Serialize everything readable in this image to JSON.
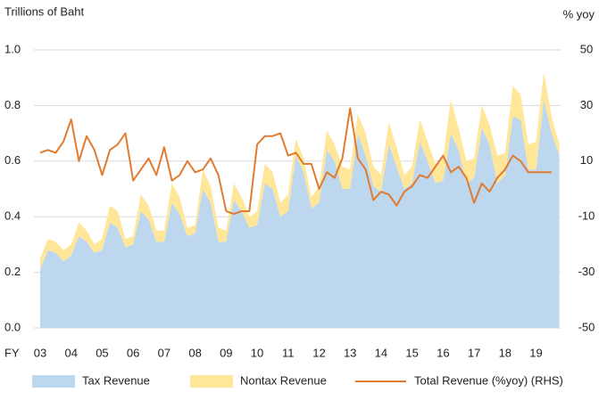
{
  "chart_data": {
    "type": "combo",
    "ylabel": "Trillions of Baht",
    "y2label": "% yoy",
    "xlabel": "FY",
    "categories": [
      "03",
      null,
      null,
      null,
      "04",
      null,
      null,
      null,
      "05",
      null,
      null,
      null,
      "06",
      null,
      null,
      null,
      "07",
      null,
      null,
      null,
      "08",
      null,
      null,
      null,
      "09",
      null,
      null,
      null,
      "10",
      null,
      null,
      null,
      "11",
      null,
      null,
      null,
      "12",
      null,
      null,
      null,
      "13",
      null,
      null,
      null,
      "14",
      null,
      null,
      null,
      "15",
      null,
      null,
      null,
      "16",
      null,
      null,
      null,
      "17",
      null,
      null,
      null,
      "18",
      null,
      null,
      null,
      "19",
      null,
      null,
      null
    ],
    "ylim": [
      0,
      1
    ],
    "yticks": [
      {
        "value": 0,
        "label": "0.0"
      },
      0.2,
      0.4,
      0.6,
      0.8,
      {
        "value": 1,
        "label": "1.0"
      }
    ],
    "y2lim": [
      -50,
      50
    ],
    "y2ticks": [
      -50,
      -30,
      -10,
      10,
      30,
      50
    ],
    "grid": true,
    "legend": "bottom",
    "series": [
      {
        "name": "Tax Revenue",
        "type": "area",
        "stack": true,
        "color": "#bdd7ee",
        "values": [
          0.21,
          0.28,
          0.27,
          0.24,
          0.26,
          0.33,
          0.31,
          0.27,
          0.28,
          0.38,
          0.36,
          0.29,
          0.3,
          0.42,
          0.39,
          0.31,
          0.31,
          0.45,
          0.41,
          0.33,
          0.34,
          0.5,
          0.45,
          0.31,
          0.31,
          0.46,
          0.42,
          0.36,
          0.37,
          0.52,
          0.5,
          0.4,
          0.42,
          0.62,
          0.56,
          0.43,
          0.45,
          0.64,
          0.6,
          0.5,
          0.5,
          0.7,
          0.62,
          0.51,
          0.49,
          0.66,
          0.58,
          0.5,
          0.52,
          0.67,
          0.6,
          0.52,
          0.53,
          0.7,
          0.64,
          0.52,
          0.54,
          0.72,
          0.66,
          0.52,
          0.55,
          0.76,
          0.75,
          0.57,
          0.57,
          0.82,
          0.7,
          0.62
        ]
      },
      {
        "name": "Nontax Revenue",
        "type": "area",
        "stack": true,
        "color": "#ffe699",
        "values": [
          0.04,
          0.04,
          0.04,
          0.04,
          0.04,
          0.05,
          0.04,
          0.03,
          0.04,
          0.06,
          0.06,
          0.03,
          0.03,
          0.06,
          0.05,
          0.04,
          0.04,
          0.07,
          0.06,
          0.03,
          0.03,
          0.07,
          0.06,
          0.05,
          0.04,
          0.06,
          0.05,
          0.04,
          0.05,
          0.07,
          0.06,
          0.05,
          0.06,
          0.06,
          0.05,
          0.04,
          0.06,
          0.07,
          0.06,
          0.08,
          0.07,
          0.07,
          0.08,
          0.07,
          0.06,
          0.08,
          0.07,
          0.05,
          0.06,
          0.08,
          0.07,
          0.07,
          0.08,
          0.12,
          0.08,
          0.08,
          0.07,
          0.08,
          0.07,
          0.1,
          0.08,
          0.11,
          0.09,
          0.09,
          0.1,
          0.1,
          0.06,
          0.04
        ]
      },
      {
        "name": "Total Revenue (%yoy) (RHS)",
        "type": "line",
        "axis": "y2",
        "color": "#e07b30",
        "values": [
          13,
          14,
          13,
          17,
          25,
          10,
          19,
          14,
          5,
          14,
          16,
          20,
          3,
          7,
          11,
          5,
          15,
          3,
          5,
          10,
          6,
          7,
          11,
          5,
          -8,
          -9,
          -8,
          -8,
          16,
          19,
          19,
          20,
          12,
          13,
          9,
          9,
          0,
          6,
          4,
          11,
          29,
          11,
          7,
          -4,
          -1,
          -2,
          -6,
          -1,
          1,
          5,
          4,
          8,
          12,
          6,
          8,
          4,
          -5,
          2,
          -1,
          4,
          7,
          12,
          10,
          6,
          6,
          6,
          6,
          null
        ]
      }
    ]
  }
}
